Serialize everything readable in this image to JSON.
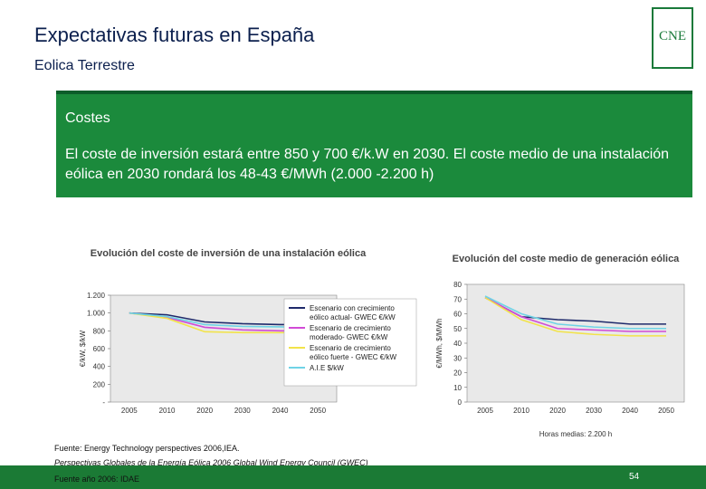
{
  "header": {
    "title": "Expectativas futuras en España",
    "subtitle": "Eolica Terrestre",
    "logo_text": "CNE"
  },
  "panel": {
    "heading": "Costes",
    "text": "El coste de inversión estará entre 850 y 700 €/k.W en 2030. El coste medio de una instalación eólica en 2030 rondará los 48-43 €/MWh (2.000 -2.200 h)"
  },
  "chart_data": [
    {
      "type": "line",
      "title": "Evolución del coste de inversión de una instalación eólica",
      "xlabel": "",
      "ylabel": "€/kW, $/kW",
      "x": [
        "2005",
        "2010",
        "2020",
        "2030",
        "2040",
        "2050"
      ],
      "ylim": [
        0,
        1200
      ],
      "yticks": [
        "1.200",
        "1.000",
        "800",
        "600",
        "400",
        "200",
        "-"
      ],
      "series": [
        {
          "name": "Escenario con crecimiento eólico actual- GWEC €/kW",
          "color": "#1f2a6b",
          "values": [
            1000,
            980,
            900,
            880,
            870,
            870
          ]
        },
        {
          "name": "Escenario de crecimiento moderado- GWEC €/kW",
          "color": "#d14bd6",
          "values": [
            1000,
            950,
            840,
            810,
            800,
            800
          ]
        },
        {
          "name": "Escenario de crecimiento eólico fuerte - GWEC €/kW",
          "color": "#f2e34a",
          "values": [
            1000,
            940,
            790,
            780,
            780,
            780
          ]
        },
        {
          "name": "A.I.E $/kW",
          "color": "#6fd3e6",
          "values": [
            1000,
            960,
            870,
            850,
            845,
            840
          ]
        }
      ]
    },
    {
      "type": "line",
      "title": "Evolución del coste medio de generación eólica",
      "xlabel": "Horas medias: 2.200 h",
      "ylabel": "€/MWh, $/MWh",
      "x": [
        "2005",
        "2010",
        "2020",
        "2030",
        "2040",
        "2050"
      ],
      "ylim": [
        0,
        80
      ],
      "yticks": [
        "80",
        "70",
        "60",
        "50",
        "40",
        "30",
        "20",
        "10",
        "0"
      ],
      "series": [
        {
          "color": "#1f2a6b",
          "values": [
            71,
            58,
            56,
            55,
            53,
            53
          ]
        },
        {
          "color": "#d14bd6",
          "values": [
            71,
            58,
            50,
            49,
            48,
            48
          ]
        },
        {
          "color": "#f2e34a",
          "values": [
            71,
            56,
            48,
            46,
            45,
            45
          ]
        },
        {
          "color": "#6fd3e6",
          "values": [
            72,
            60,
            53,
            51,
            50,
            50
          ]
        }
      ]
    }
  ],
  "notes": {
    "line1": "Fuente: Energy Technology perspectives 2006,IEA.",
    "line2": "Perspectivas Globales de la Energía Eólica 2006 Global Wind Energy Council (GWEC)",
    "line3": "Fuente año 2006: IDAE"
  },
  "footer": {
    "page_number": "54"
  },
  "colors": {
    "brand_green": "#1b8a3c",
    "title_navy": "#0b1f4d"
  }
}
